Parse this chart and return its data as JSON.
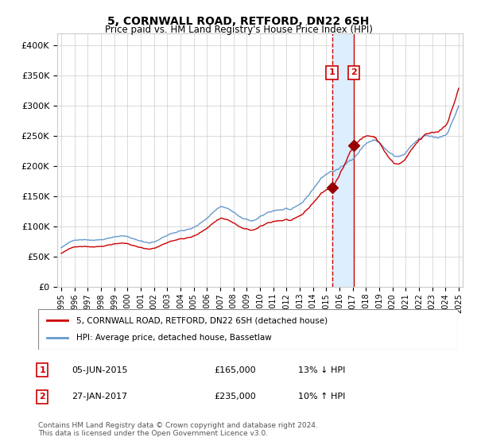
{
  "title": "5, CORNWALL ROAD, RETFORD, DN22 6SH",
  "subtitle": "Price paid vs. HM Land Registry's House Price Index (HPI)",
  "legend_line1": "5, CORNWALL ROAD, RETFORD, DN22 6SH (detached house)",
  "legend_line2": "HPI: Average price, detached house, Bassetlaw",
  "annotation1_label": "1",
  "annotation1_date": "05-JUN-2015",
  "annotation1_price": "£165,000",
  "annotation1_hpi": "13% ↓ HPI",
  "annotation2_label": "2",
  "annotation2_date": "27-JAN-2017",
  "annotation2_price": "£235,000",
  "annotation2_hpi": "10% ↑ HPI",
  "footnote": "Contains HM Land Registry data © Crown copyright and database right 2024.\nThis data is licensed under the Open Government Licence v3.0.",
  "red_line_color": "#cc0000",
  "blue_line_color": "#6699cc",
  "marker_color": "#990000",
  "vline_color": "#cc0000",
  "vspan_color": "#ddeeff",
  "annotation_box_color": "#cc0000",
  "grid_color": "#cccccc",
  "background_color": "#ffffff",
  "start_year": 1995,
  "end_year": 2025,
  "ylim_min": 0,
  "ylim_max": 420000,
  "sale1_year": 2015.43,
  "sale1_price": 165000,
  "sale2_year": 2017.07,
  "sale2_price": 235000
}
